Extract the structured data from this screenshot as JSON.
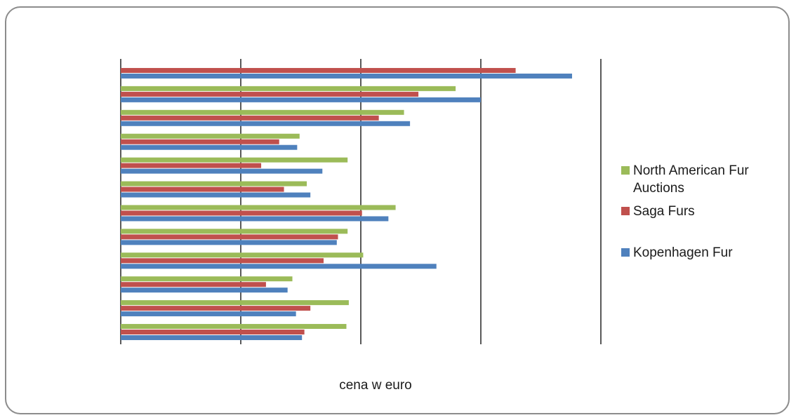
{
  "chart_data": {
    "type": "bar",
    "orientation": "horizontal",
    "title": "",
    "xlabel": "cena w euro",
    "ylabel": "",
    "xlim": [
      0,
      4
    ],
    "grid": true,
    "legend_position": "right",
    "categories": [
      "",
      "",
      "",
      "",
      "",
      "",
      "",
      "",
      "",
      "",
      "",
      ""
    ],
    "series": [
      {
        "name": "North American Fur Auctions",
        "color": "#9BBB59",
        "values": [
          null,
          2.79,
          2.36,
          1.49,
          1.89,
          1.55,
          2.29,
          1.89,
          2.02,
          1.43,
          1.9,
          1.88
        ]
      },
      {
        "name": "Saga Furs",
        "color": "#C0504D",
        "values": [
          3.29,
          2.48,
          2.15,
          1.32,
          1.17,
          1.36,
          2.01,
          1.81,
          1.69,
          1.21,
          1.58,
          1.53
        ]
      },
      {
        "name": "Kopenhagen Fur",
        "color": "#4F81BD",
        "values": [
          3.76,
          3.0,
          2.41,
          1.47,
          1.68,
          1.58,
          2.23,
          1.8,
          2.63,
          1.39,
          1.46,
          1.51
        ]
      }
    ]
  },
  "legend": {
    "items": [
      {
        "label": "North American Fur Auctions",
        "color": "#9BBB59"
      },
      {
        "label": "Saga Furs",
        "color": "#C0504D"
      },
      {
        "label": "Kopenhagen Fur",
        "color": "#4F81BD"
      }
    ]
  }
}
